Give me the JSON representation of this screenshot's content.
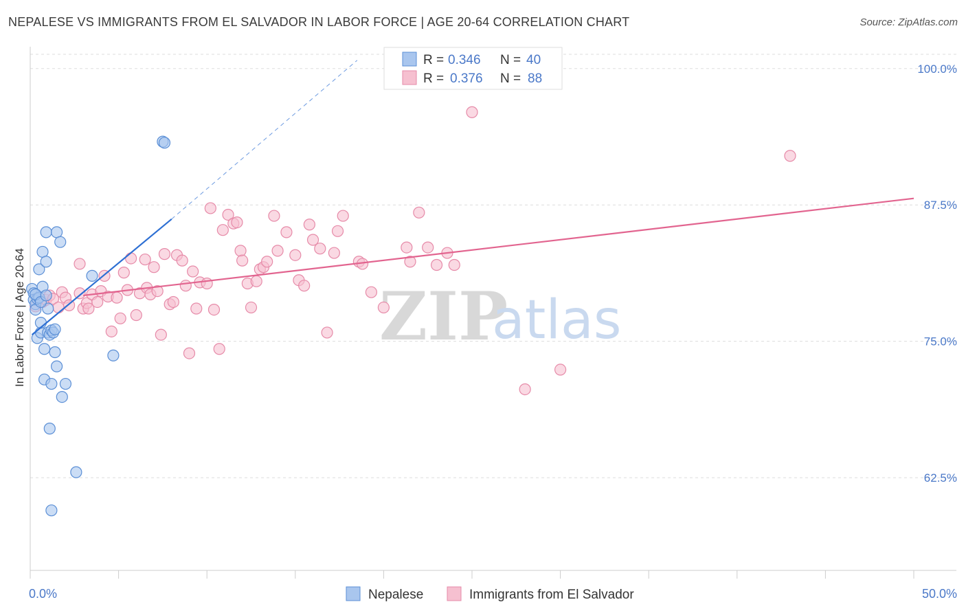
{
  "title": "NEPALESE VS IMMIGRANTS FROM EL SALVADOR IN LABOR FORCE | AGE 20-64 CORRELATION CHART",
  "source": "Source: ZipAtlas.com",
  "watermark": {
    "zip": "ZIP",
    "atlas": "atlas"
  },
  "colors": {
    "blue_fill": "#a9c6ee",
    "blue_stroke": "#5b8fd6",
    "blue_line": "#2d6fd3",
    "pink_fill": "#f6c0d0",
    "pink_stroke": "#e68aa8",
    "pink_line": "#e2648f",
    "grid": "#dddddd",
    "tick_label": "#4a78c8"
  },
  "legend": {
    "rows": [
      {
        "r_label": "R =",
        "r_value": "0.346",
        "n_label": "N =",
        "n_value": "40"
      },
      {
        "r_label": "R =",
        "r_value": "0.376",
        "n_label": "N =",
        "n_value": "88"
      }
    ]
  },
  "bottom_legend": {
    "series1": "Nepalese",
    "series2": "Immigrants from El Salvador"
  },
  "chart_data": {
    "type": "scatter",
    "title": "NEPALESE VS IMMIGRANTS FROM EL SALVADOR IN LABOR FORCE | AGE 20-64 CORRELATION CHART",
    "xlabel": "",
    "ylabel": "In Labor Force | Age 20-64",
    "xlim": [
      0,
      50
    ],
    "ylim": [
      54,
      102
    ],
    "x_tick_labels": [
      "0.0%",
      "50.0%"
    ],
    "y_ticks": [
      62.5,
      75.0,
      87.5,
      100.0
    ],
    "y_tick_labels": [
      "62.5%",
      "75.0%",
      "87.5%",
      "100.0%"
    ],
    "grid": "horizontal dashed",
    "legend_placement": "top-center",
    "series": [
      {
        "name": "Nepalese",
        "r": 0.346,
        "n": 40,
        "trend": {
          "x": [
            0.1,
            8.0
          ],
          "y": [
            75.6,
            86.2
          ],
          "extended_to": [
            18.5,
            100.0
          ]
        },
        "points": [
          [
            0.1,
            79.8
          ],
          [
            0.2,
            79.4
          ],
          [
            0.2,
            78.8
          ],
          [
            0.3,
            78.4
          ],
          [
            0.3,
            77.9
          ],
          [
            0.4,
            78.9
          ],
          [
            0.4,
            75.3
          ],
          [
            0.5,
            79.0
          ],
          [
            0.5,
            81.6
          ],
          [
            0.6,
            75.8
          ],
          [
            0.6,
            76.7
          ],
          [
            0.7,
            80.0
          ],
          [
            0.7,
            83.2
          ],
          [
            0.8,
            71.5
          ],
          [
            0.8,
            74.3
          ],
          [
            0.9,
            85.0
          ],
          [
            0.9,
            82.3
          ],
          [
            1.0,
            75.8
          ],
          [
            1.0,
            78.0
          ],
          [
            1.1,
            75.6
          ],
          [
            1.1,
            67.0
          ],
          [
            1.2,
            76.0
          ],
          [
            1.2,
            71.1
          ],
          [
            1.2,
            59.5
          ],
          [
            1.3,
            75.8
          ],
          [
            1.4,
            74.0
          ],
          [
            1.4,
            76.1
          ],
          [
            1.5,
            85.0
          ],
          [
            1.5,
            72.7
          ],
          [
            1.7,
            84.1
          ],
          [
            1.8,
            69.9
          ],
          [
            2.0,
            71.1
          ],
          [
            2.6,
            63.0
          ],
          [
            3.5,
            81.0
          ],
          [
            4.7,
            73.7
          ],
          [
            7.5,
            93.3
          ],
          [
            7.6,
            93.2
          ],
          [
            0.3,
            79.3
          ],
          [
            0.6,
            78.6
          ],
          [
            0.9,
            79.2
          ]
        ]
      },
      {
        "name": "Immigrants from El Salvador",
        "r": 0.376,
        "n": 88,
        "trend": {
          "x": [
            3.0,
            50.0
          ],
          "y": [
            79.2,
            88.1
          ]
        },
        "points": [
          [
            0.3,
            78.2
          ],
          [
            0.5,
            79.0
          ],
          [
            0.7,
            78.6
          ],
          [
            0.9,
            78.8
          ],
          [
            1.1,
            79.2
          ],
          [
            1.3,
            78.9
          ],
          [
            1.6,
            78.1
          ],
          [
            1.8,
            79.5
          ],
          [
            2.0,
            79.0
          ],
          [
            2.2,
            78.3
          ],
          [
            2.8,
            79.4
          ],
          [
            3.0,
            78.0
          ],
          [
            2.8,
            82.1
          ],
          [
            3.2,
            78.5
          ],
          [
            3.5,
            79.3
          ],
          [
            3.8,
            78.6
          ],
          [
            4.0,
            79.6
          ],
          [
            4.2,
            81.0
          ],
          [
            4.4,
            79.1
          ],
          [
            4.6,
            75.9
          ],
          [
            4.9,
            79.0
          ],
          [
            5.1,
            77.1
          ],
          [
            5.3,
            81.3
          ],
          [
            5.5,
            79.7
          ],
          [
            5.7,
            82.6
          ],
          [
            6.0,
            77.4
          ],
          [
            6.2,
            79.4
          ],
          [
            6.5,
            82.5
          ],
          [
            6.6,
            79.9
          ],
          [
            6.8,
            79.3
          ],
          [
            7.0,
            81.8
          ],
          [
            7.2,
            79.6
          ],
          [
            7.4,
            75.6
          ],
          [
            7.6,
            83.0
          ],
          [
            7.9,
            78.4
          ],
          [
            8.1,
            78.6
          ],
          [
            8.3,
            82.9
          ],
          [
            8.6,
            82.4
          ],
          [
            8.8,
            80.1
          ],
          [
            9.0,
            73.9
          ],
          [
            9.2,
            81.4
          ],
          [
            9.4,
            78.0
          ],
          [
            9.6,
            80.4
          ],
          [
            10.0,
            80.3
          ],
          [
            10.2,
            87.2
          ],
          [
            10.4,
            77.9
          ],
          [
            10.7,
            74.3
          ],
          [
            10.9,
            85.2
          ],
          [
            11.2,
            86.6
          ],
          [
            11.5,
            85.8
          ],
          [
            11.7,
            85.9
          ],
          [
            11.9,
            83.3
          ],
          [
            12.0,
            82.4
          ],
          [
            12.3,
            80.3
          ],
          [
            12.5,
            78.1
          ],
          [
            12.8,
            80.5
          ],
          [
            13.0,
            81.6
          ],
          [
            13.2,
            81.8
          ],
          [
            13.4,
            82.3
          ],
          [
            13.8,
            86.5
          ],
          [
            14.0,
            83.3
          ],
          [
            14.5,
            85.0
          ],
          [
            15.0,
            82.9
          ],
          [
            15.2,
            80.6
          ],
          [
            15.5,
            80.1
          ],
          [
            15.8,
            85.7
          ],
          [
            16.0,
            84.3
          ],
          [
            16.4,
            83.5
          ],
          [
            16.8,
            75.8
          ],
          [
            17.2,
            83.1
          ],
          [
            17.4,
            85.1
          ],
          [
            17.7,
            86.5
          ],
          [
            18.6,
            82.3
          ],
          [
            18.8,
            82.1
          ],
          [
            19.3,
            79.5
          ],
          [
            20.0,
            78.1
          ],
          [
            21.3,
            83.6
          ],
          [
            21.5,
            82.3
          ],
          [
            22.0,
            86.8
          ],
          [
            22.5,
            83.6
          ],
          [
            23.0,
            82.0
          ],
          [
            23.6,
            83.1
          ],
          [
            24.0,
            82.0
          ],
          [
            25.0,
            96.0
          ],
          [
            28.0,
            70.6
          ],
          [
            30.0,
            72.4
          ],
          [
            43.0,
            92.0
          ],
          [
            3.3,
            78.0
          ]
        ]
      }
    ]
  }
}
